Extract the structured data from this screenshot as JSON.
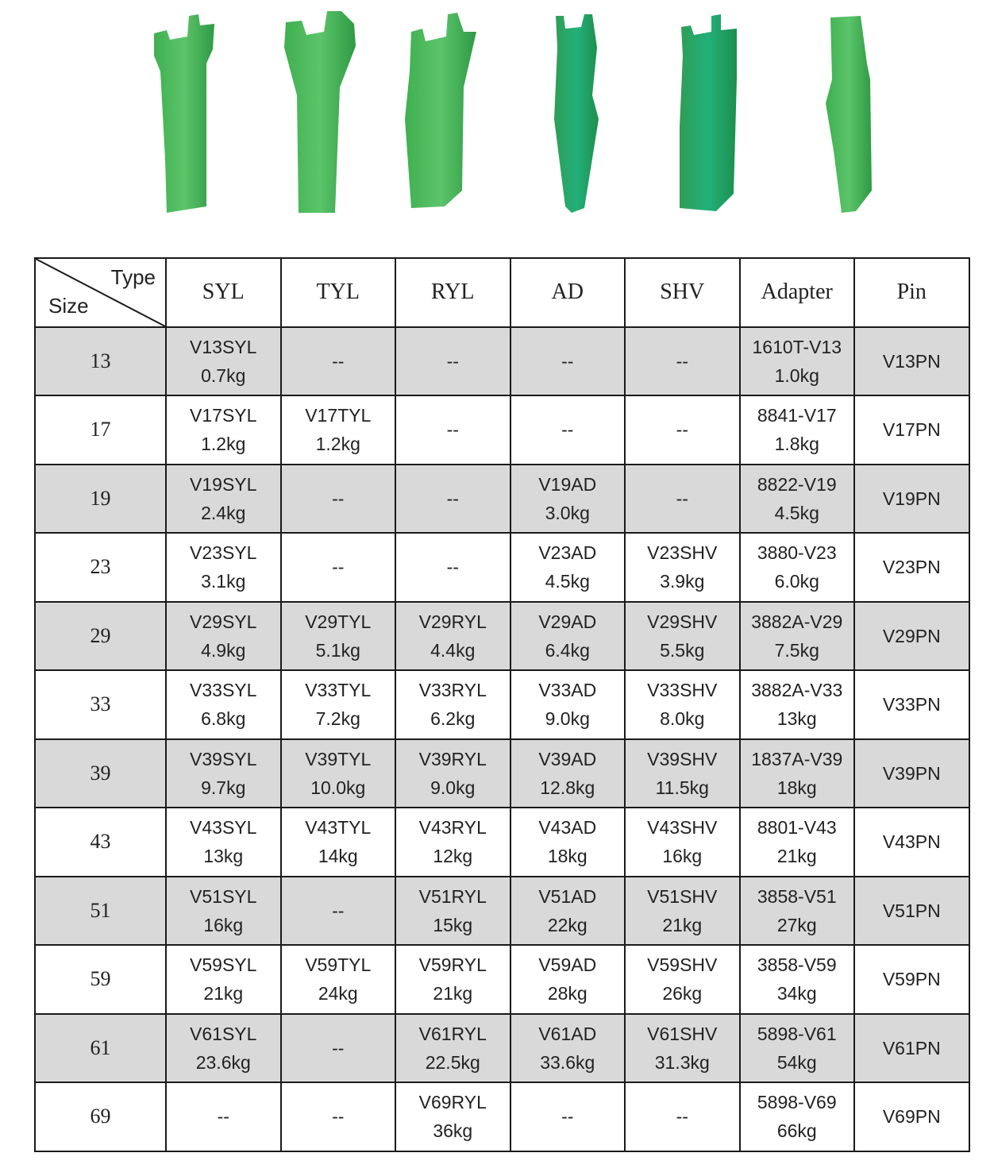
{
  "colors": {
    "tooth_green": "#2fa84f",
    "tooth_teal": "#1a9a6a",
    "row_gray": "#d9d9d9",
    "border": "#1a1a1a"
  },
  "photos": [
    "SYL tooth",
    "TYL tooth",
    "RYL tooth",
    "AD tooth",
    "SHV tooth",
    "Adapter"
  ],
  "header": {
    "corner_type": "Type",
    "corner_size": "Size",
    "columns": [
      "SYL",
      "TYL",
      "RYL",
      "AD",
      "SHV",
      "Adapter",
      "Pin"
    ]
  },
  "rows": [
    {
      "size": "13",
      "cells": [
        [
          "V13SYL",
          "0.7kg"
        ],
        [
          "--"
        ],
        [
          "--"
        ],
        [
          "--"
        ],
        [
          "--"
        ],
        [
          "1610T-V13",
          "1.0kg"
        ],
        [
          "V13PN"
        ]
      ]
    },
    {
      "size": "17",
      "cells": [
        [
          "V17SYL",
          "1.2kg"
        ],
        [
          "V17TYL",
          "1.2kg"
        ],
        [
          "--"
        ],
        [
          "--"
        ],
        [
          "--"
        ],
        [
          "8841-V17",
          "1.8kg"
        ],
        [
          "V17PN"
        ]
      ]
    },
    {
      "size": "19",
      "cells": [
        [
          "V19SYL",
          "2.4kg"
        ],
        [
          "--"
        ],
        [
          "--"
        ],
        [
          "V19AD",
          "3.0kg"
        ],
        [
          "--"
        ],
        [
          "8822-V19",
          "4.5kg"
        ],
        [
          "V19PN"
        ]
      ]
    },
    {
      "size": "23",
      "cells": [
        [
          "V23SYL",
          "3.1kg"
        ],
        [
          "--"
        ],
        [
          "--"
        ],
        [
          "V23AD",
          "4.5kg"
        ],
        [
          "V23SHV",
          "3.9kg"
        ],
        [
          "3880-V23",
          "6.0kg"
        ],
        [
          "V23PN"
        ]
      ]
    },
    {
      "size": "29",
      "cells": [
        [
          "V29SYL",
          "4.9kg"
        ],
        [
          "V29TYL",
          "5.1kg"
        ],
        [
          "V29RYL",
          "4.4kg"
        ],
        [
          "V29AD",
          "6.4kg"
        ],
        [
          "V29SHV",
          "5.5kg"
        ],
        [
          "3882A-V29",
          "7.5kg"
        ],
        [
          "V29PN"
        ]
      ]
    },
    {
      "size": "33",
      "cells": [
        [
          "V33SYL",
          "6.8kg"
        ],
        [
          "V33TYL",
          "7.2kg"
        ],
        [
          "V33RYL",
          "6.2kg"
        ],
        [
          "V33AD",
          "9.0kg"
        ],
        [
          "V33SHV",
          "8.0kg"
        ],
        [
          "3882A-V33",
          "13kg"
        ],
        [
          "V33PN"
        ]
      ]
    },
    {
      "size": "39",
      "cells": [
        [
          "V39SYL",
          "9.7kg"
        ],
        [
          "V39TYL",
          "10.0kg"
        ],
        [
          "V39RYL",
          "9.0kg"
        ],
        [
          "V39AD",
          "12.8kg"
        ],
        [
          "V39SHV",
          "11.5kg"
        ],
        [
          "1837A-V39",
          "18kg"
        ],
        [
          "V39PN"
        ]
      ]
    },
    {
      "size": "43",
      "cells": [
        [
          "V43SYL",
          "13kg"
        ],
        [
          "V43TYL",
          "14kg"
        ],
        [
          "V43RYL",
          "12kg"
        ],
        [
          "V43AD",
          "18kg"
        ],
        [
          "V43SHV",
          "16kg"
        ],
        [
          "8801-V43",
          "21kg"
        ],
        [
          "V43PN"
        ]
      ]
    },
    {
      "size": "51",
      "cells": [
        [
          "V51SYL",
          "16kg"
        ],
        [
          "--"
        ],
        [
          "V51RYL",
          "15kg"
        ],
        [
          "V51AD",
          "22kg"
        ],
        [
          "V51SHV",
          "21kg"
        ],
        [
          "3858-V51",
          "27kg"
        ],
        [
          "V51PN"
        ]
      ]
    },
    {
      "size": "59",
      "cells": [
        [
          "V59SYL",
          "21kg"
        ],
        [
          "V59TYL",
          "24kg"
        ],
        [
          "V59RYL",
          "21kg"
        ],
        [
          "V59AD",
          "28kg"
        ],
        [
          "V59SHV",
          "26kg"
        ],
        [
          "3858-V59",
          "34kg"
        ],
        [
          "V59PN"
        ]
      ]
    },
    {
      "size": "61",
      "cells": [
        [
          "V61SYL",
          "23.6kg"
        ],
        [
          "--"
        ],
        [
          "V61RYL",
          "22.5kg"
        ],
        [
          "V61AD",
          "33.6kg"
        ],
        [
          "V61SHV",
          "31.3kg"
        ],
        [
          "5898-V61",
          "54kg"
        ],
        [
          "V61PN"
        ]
      ]
    },
    {
      "size": "69",
      "cells": [
        [
          "--"
        ],
        [
          "--"
        ],
        [
          "V69RYL",
          "36kg"
        ],
        [
          "--"
        ],
        [
          "--"
        ],
        [
          "5898-V69",
          "66kg"
        ],
        [
          "V69PN"
        ]
      ]
    }
  ]
}
